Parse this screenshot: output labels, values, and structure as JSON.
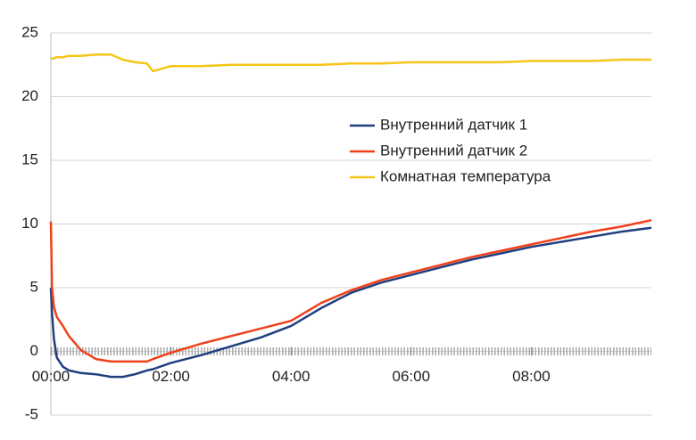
{
  "chart_data": {
    "type": "line",
    "x": [
      0,
      0.02,
      0.05,
      0.1,
      0.2,
      0.3,
      0.5,
      0.75,
      1,
      1.2,
      1.4,
      1.6,
      1.7,
      2,
      2.5,
      3,
      3.5,
      4,
      4.5,
      5,
      5.5,
      6,
      6.5,
      7,
      7.5,
      8,
      8.5,
      9,
      9.5,
      10
    ],
    "series": [
      {
        "name": "Внутренний датчик 1",
        "color": "#1f3f7f",
        "values": [
          5,
          3,
          1,
          -0.5,
          -1.2,
          -1.5,
          -1.7,
          -1.8,
          -2.0,
          -2.0,
          -1.8,
          -1.5,
          -1.4,
          -0.9,
          -0.3,
          0.4,
          1.1,
          2.0,
          3.4,
          4.6,
          5.4,
          6.0,
          6.6,
          7.2,
          7.7,
          8.2,
          8.6,
          9.0,
          9.4,
          9.7
        ]
      },
      {
        "name": "Внутренний датчик 2",
        "color": "#f0401a",
        "values": [
          10.2,
          5,
          3.5,
          2.7,
          2.0,
          1.2,
          0.1,
          -0.6,
          -0.8,
          -0.8,
          -0.8,
          -0.8,
          -0.6,
          -0.1,
          0.6,
          1.2,
          1.8,
          2.4,
          3.8,
          4.8,
          5.6,
          6.2,
          6.8,
          7.4,
          7.9,
          8.4,
          8.9,
          9.4,
          9.8,
          10.3
        ]
      },
      {
        "name": "Комнатная температура",
        "color": "#f5c518",
        "values": [
          23.0,
          23.0,
          23.0,
          23.1,
          23.1,
          23.2,
          23.2,
          23.3,
          23.3,
          22.9,
          22.7,
          22.6,
          22.0,
          22.4,
          22.4,
          22.5,
          22.5,
          22.5,
          22.5,
          22.6,
          22.6,
          22.7,
          22.7,
          22.7,
          22.7,
          22.8,
          22.8,
          22.8,
          22.9,
          22.9
        ]
      }
    ],
    "xlim": [
      0,
      10
    ],
    "xticks": [
      {
        "value": 0,
        "label": "00:00"
      },
      {
        "value": 2,
        "label": "02:00"
      },
      {
        "value": 4,
        "label": "04:00"
      },
      {
        "value": 6,
        "label": "06:00"
      },
      {
        "value": 8,
        "label": "08:00"
      }
    ],
    "ylim": [
      -5,
      25
    ],
    "yticks": [
      -5,
      0,
      5,
      10,
      15,
      20,
      25
    ],
    "grid": true
  }
}
